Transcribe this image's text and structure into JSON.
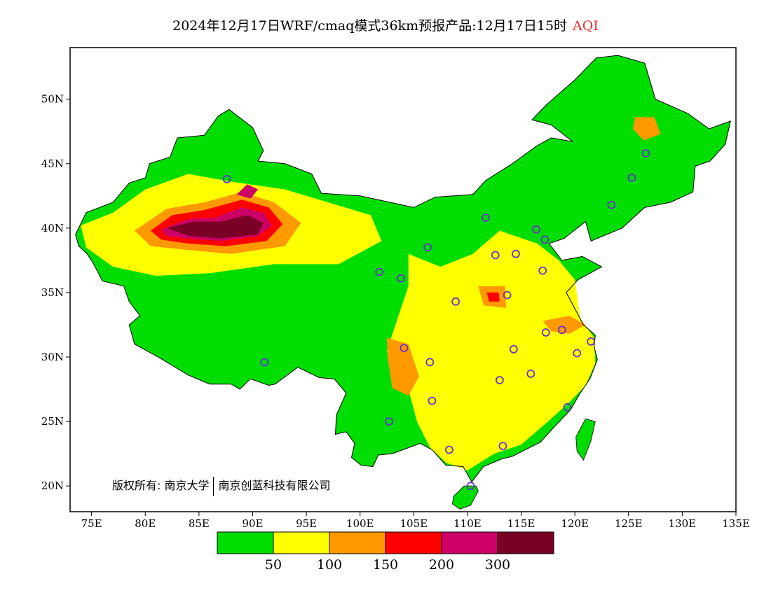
{
  "title": {
    "text": "2024年12月17日WRF/cmaq模式36km预报产品:12月17日15时",
    "variable": "AQI"
  },
  "map": {
    "lon_range": [
      73,
      135
    ],
    "lat_range": [
      18,
      54
    ],
    "lon_ticks": [
      {
        "value": 75,
        "label": "75E"
      },
      {
        "value": 80,
        "label": "80E"
      },
      {
        "value": 85,
        "label": "85E"
      },
      {
        "value": 90,
        "label": "90E"
      },
      {
        "value": 95,
        "label": "95E"
      },
      {
        "value": 100,
        "label": "100E"
      },
      {
        "value": 105,
        "label": "105E"
      },
      {
        "value": 110,
        "label": "110E"
      },
      {
        "value": 115,
        "label": "115E"
      },
      {
        "value": 120,
        "label": "120E"
      },
      {
        "value": 125,
        "label": "125E"
      },
      {
        "value": 130,
        "label": "130E"
      },
      {
        "value": 135,
        "label": "135E"
      }
    ],
    "lat_ticks": [
      {
        "value": 20,
        "label": "20N"
      },
      {
        "value": 25,
        "label": "25N"
      },
      {
        "value": 30,
        "label": "30N"
      },
      {
        "value": 35,
        "label": "35N"
      },
      {
        "value": 40,
        "label": "40N"
      },
      {
        "value": 45,
        "label": "45N"
      },
      {
        "value": 50,
        "label": "50N"
      }
    ],
    "country_outline": [
      [
        73.5,
        39.5
      ],
      [
        74.5,
        41.2
      ],
      [
        77,
        42.0
      ],
      [
        78.5,
        43.5
      ],
      [
        80,
        43.9
      ],
      [
        80.4,
        45.0
      ],
      [
        82.3,
        45.5
      ],
      [
        83,
        47.0
      ],
      [
        85.5,
        47.2
      ],
      [
        86.8,
        48.7
      ],
      [
        87.8,
        49.2
      ],
      [
        90.0,
        47.8
      ],
      [
        91.0,
        46.0
      ],
      [
        90.5,
        45.2
      ],
      [
        93,
        45.0
      ],
      [
        95.5,
        44.2
      ],
      [
        96.4,
        42.7
      ],
      [
        100,
        42.5
      ],
      [
        105,
        41.6
      ],
      [
        107,
        42.4
      ],
      [
        110.5,
        42.6
      ],
      [
        111.7,
        43.7
      ],
      [
        114,
        44.9
      ],
      [
        116.5,
        46.4
      ],
      [
        117.8,
        47.0
      ],
      [
        119.8,
        46.7
      ],
      [
        117.8,
        48.0
      ],
      [
        116,
        48.4
      ],
      [
        117.4,
        49.6
      ],
      [
        120,
        51.5
      ],
      [
        122,
        53.2
      ],
      [
        124.0,
        53.4
      ],
      [
        126.5,
        52.8
      ],
      [
        127.5,
        50.0
      ],
      [
        130.5,
        48.9
      ],
      [
        132.5,
        47.7
      ],
      [
        134.5,
        48.3
      ],
      [
        134.0,
        46.5
      ],
      [
        132.6,
        45.2
      ],
      [
        131.2,
        44.8
      ],
      [
        131.0,
        42.8
      ],
      [
        128.9,
        42.0
      ],
      [
        126.5,
        41.6
      ],
      [
        124.4,
        40.0
      ],
      [
        121.5,
        39.0
      ],
      [
        121.0,
        40.5
      ],
      [
        119.0,
        39.2
      ],
      [
        117.6,
        38.8
      ],
      [
        118.8,
        37.5
      ],
      [
        120.7,
        37.8
      ],
      [
        122.5,
        37.0
      ],
      [
        120.3,
        36.0
      ],
      [
        119.2,
        35.0
      ],
      [
        120.8,
        32.5
      ],
      [
        121.9,
        31.7
      ],
      [
        121.8,
        30.8
      ],
      [
        122.1,
        29.8
      ],
      [
        121.4,
        28.3
      ],
      [
        120.5,
        27.2
      ],
      [
        119.6,
        25.9
      ],
      [
        118.0,
        24.5
      ],
      [
        116.8,
        23.4
      ],
      [
        114.2,
        22.3
      ],
      [
        113.2,
        22.1
      ],
      [
        111.5,
        21.5
      ],
      [
        110.4,
        20.3
      ],
      [
        109.6,
        21.5
      ],
      [
        108.0,
        21.6
      ],
      [
        106.7,
        22.8
      ],
      [
        105.6,
        23.3
      ],
      [
        103.0,
        22.5
      ],
      [
        101.7,
        22.4
      ],
      [
        101.2,
        21.5
      ],
      [
        100.1,
        21.6
      ],
      [
        99.2,
        22.2
      ],
      [
        99.5,
        23.3
      ],
      [
        98.7,
        24.2
      ],
      [
        97.7,
        24.0
      ],
      [
        97.8,
        25.5
      ],
      [
        98.7,
        27.2
      ],
      [
        97.6,
        28.3
      ],
      [
        96.2,
        28.4
      ],
      [
        94.2,
        29.2
      ],
      [
        92.1,
        27.9
      ],
      [
        91.5,
        27.8
      ],
      [
        89.8,
        28.3
      ],
      [
        88.8,
        27.5
      ],
      [
        88.0,
        27.9
      ],
      [
        86.0,
        27.9
      ],
      [
        84.0,
        28.6
      ],
      [
        81.2,
        30.0
      ],
      [
        79.0,
        31.0
      ],
      [
        78.5,
        32.5
      ],
      [
        79.5,
        33.2
      ],
      [
        78.5,
        34.3
      ],
      [
        78.0,
        35.5
      ],
      [
        76.0,
        35.9
      ],
      [
        75.2,
        37.2
      ],
      [
        74.6,
        38.0
      ],
      [
        73.8,
        38.6
      ],
      [
        73.5,
        39.5
      ]
    ],
    "taiwan": [
      [
        121.0,
        25.2
      ],
      [
        121.9,
        25.0
      ],
      [
        121.5,
        23.5
      ],
      [
        120.8,
        22.0
      ],
      [
        120.2,
        22.7
      ],
      [
        120.1,
        23.8
      ],
      [
        121.0,
        25.2
      ]
    ],
    "hainan": [
      [
        108.7,
        19.2
      ],
      [
        109.7,
        20.0
      ],
      [
        110.8,
        20.0
      ],
      [
        111.0,
        19.6
      ],
      [
        110.3,
        18.5
      ],
      [
        109.3,
        18.2
      ],
      [
        108.6,
        18.6
      ],
      [
        108.7,
        19.2
      ]
    ],
    "aqi_fields": [
      {
        "color": "#ffff00",
        "points": [
          [
            74.0,
            40.2
          ],
          [
            77,
            41.2
          ],
          [
            80.0,
            43.0
          ],
          [
            84,
            44.2
          ],
          [
            88,
            43.6
          ],
          [
            93.0,
            43.0
          ],
          [
            97,
            42.0
          ],
          [
            101,
            41.0
          ],
          [
            102,
            39.0
          ],
          [
            98.0,
            37.2
          ],
          [
            92.0,
            37.2
          ],
          [
            86.0,
            36.5
          ],
          [
            81.0,
            36.3
          ],
          [
            77.0,
            37.0
          ],
          [
            74.5,
            38.5
          ]
        ]
      },
      {
        "color": "#ffff00",
        "points": [
          [
            104.5,
            38.0
          ],
          [
            107.5,
            37.0
          ],
          [
            110.5,
            38.0
          ],
          [
            113.0,
            39.8
          ],
          [
            116.5,
            38.8
          ],
          [
            118.5,
            37.5
          ],
          [
            120.0,
            36.0
          ],
          [
            120.5,
            33.0
          ],
          [
            121.8,
            31.5
          ],
          [
            121.9,
            29.5
          ],
          [
            121.0,
            27.8
          ],
          [
            119.5,
            26.5
          ],
          [
            117.5,
            25.0
          ],
          [
            115.0,
            23.2
          ],
          [
            112.5,
            22.5
          ],
          [
            110.0,
            21.2
          ],
          [
            108.0,
            21.8
          ],
          [
            106.5,
            23.0
          ],
          [
            105.3,
            25.0
          ],
          [
            104.5,
            27.5
          ],
          [
            103.0,
            28.6
          ],
          [
            102.5,
            30.5
          ],
          [
            103.5,
            33.0
          ],
          [
            104.5,
            35.5
          ]
        ]
      },
      {
        "color": "#ff9900",
        "points": [
          [
            79.0,
            39.8
          ],
          [
            82.0,
            41.5
          ],
          [
            85.5,
            42.0
          ],
          [
            89.0,
            42.8
          ],
          [
            92.0,
            42.0
          ],
          [
            94.5,
            40.4
          ],
          [
            93.0,
            38.6
          ],
          [
            88.0,
            38.0
          ],
          [
            84.0,
            38.3
          ],
          [
            80.5,
            38.6
          ]
        ]
      },
      {
        "color": "#ff0000",
        "points": [
          [
            80.5,
            39.8
          ],
          [
            82.5,
            41.0
          ],
          [
            85.5,
            41.4
          ],
          [
            89.0,
            42.2
          ],
          [
            91.5,
            41.6
          ],
          [
            92.8,
            40.3
          ],
          [
            91.3,
            39.0
          ],
          [
            87.5,
            38.6
          ],
          [
            84.0,
            38.8
          ],
          [
            81.5,
            39.1
          ]
        ]
      },
      {
        "color": "#cc0066",
        "points": [
          [
            81.5,
            39.9
          ],
          [
            84.0,
            40.7
          ],
          [
            86.5,
            40.8
          ],
          [
            89.0,
            41.6
          ],
          [
            91.0,
            41.2
          ],
          [
            91.8,
            40.2
          ],
          [
            90.5,
            39.4
          ],
          [
            87.0,
            39.0
          ],
          [
            84.0,
            39.2
          ],
          [
            82.0,
            39.4
          ]
        ]
      },
      {
        "color": "#7a0025",
        "points": [
          [
            82.0,
            40.0
          ],
          [
            84.5,
            40.5
          ],
          [
            87.0,
            40.5
          ],
          [
            89.5,
            41.0
          ],
          [
            91.0,
            40.4
          ],
          [
            90.5,
            39.5
          ],
          [
            87.0,
            39.2
          ],
          [
            84.0,
            39.4
          ]
        ]
      },
      {
        "color": "#cc0066",
        "points": [
          [
            88.5,
            42.6
          ],
          [
            89.5,
            43.4
          ],
          [
            90.5,
            43.0
          ],
          [
            89.8,
            42.3
          ]
        ]
      },
      {
        "color": "#ff9900",
        "points": [
          [
            102.5,
            31.5
          ],
          [
            104.5,
            31.0
          ],
          [
            105.5,
            28.5
          ],
          [
            104.5,
            27.0
          ],
          [
            103.0,
            27.6
          ],
          [
            102.6,
            29.8
          ]
        ]
      },
      {
        "color": "#ff9900",
        "points": [
          [
            117.0,
            32.8
          ],
          [
            119.5,
            33.2
          ],
          [
            121.0,
            32.5
          ],
          [
            119.5,
            31.8
          ],
          [
            117.8,
            32.0
          ]
        ]
      },
      {
        "color": "#ff9900",
        "points": [
          [
            125.6,
            48.6
          ],
          [
            127.4,
            48.6
          ],
          [
            128.0,
            47.3
          ],
          [
            126.4,
            46.8
          ],
          [
            125.4,
            47.7
          ]
        ]
      },
      {
        "color": "#ff9900",
        "points": [
          [
            111.0,
            35.5
          ],
          [
            113.5,
            35.5
          ],
          [
            113.6,
            33.8
          ],
          [
            111.5,
            34.0
          ]
        ]
      },
      {
        "color": "#ff0000",
        "points": [
          [
            111.8,
            35.0
          ],
          [
            112.9,
            35.0
          ],
          [
            113.0,
            34.3
          ],
          [
            112.0,
            34.3
          ]
        ]
      }
    ],
    "cities": [
      [
        87.6,
        43.8
      ],
      [
        91.1,
        29.6
      ],
      [
        101.8,
        36.6
      ],
      [
        103.8,
        36.1
      ],
      [
        106.3,
        38.5
      ],
      [
        104.1,
        30.7
      ],
      [
        106.5,
        29.6
      ],
      [
        106.7,
        26.6
      ],
      [
        102.7,
        25.0
      ],
      [
        108.3,
        22.8
      ],
      [
        110.3,
        20.0
      ],
      [
        108.9,
        34.3
      ],
      [
        111.7,
        40.8
      ],
      [
        112.6,
        37.9
      ],
      [
        114.5,
        38.0
      ],
      [
        116.4,
        39.9
      ],
      [
        117.2,
        39.1
      ],
      [
        117.0,
        36.7
      ],
      [
        113.7,
        34.8
      ],
      [
        117.3,
        31.9
      ],
      [
        114.3,
        30.6
      ],
      [
        113.0,
        28.2
      ],
      [
        115.9,
        28.7
      ],
      [
        118.8,
        32.1
      ],
      [
        120.2,
        30.3
      ],
      [
        121.5,
        31.2
      ],
      [
        119.3,
        26.1
      ],
      [
        113.3,
        23.1
      ],
      [
        123.4,
        41.8
      ],
      [
        125.3,
        43.9
      ],
      [
        126.6,
        45.8
      ]
    ]
  },
  "colorbar": {
    "colors": [
      "#00dd00",
      "#ffff00",
      "#ff9900",
      "#ff0000",
      "#cc0066",
      "#7a0025"
    ],
    "labels": [
      "50",
      "100",
      "150",
      "200",
      "300"
    ]
  },
  "copyright": {
    "prefix": "版权所有: 南京大学",
    "company": "南京创蓝科技有限公司"
  }
}
